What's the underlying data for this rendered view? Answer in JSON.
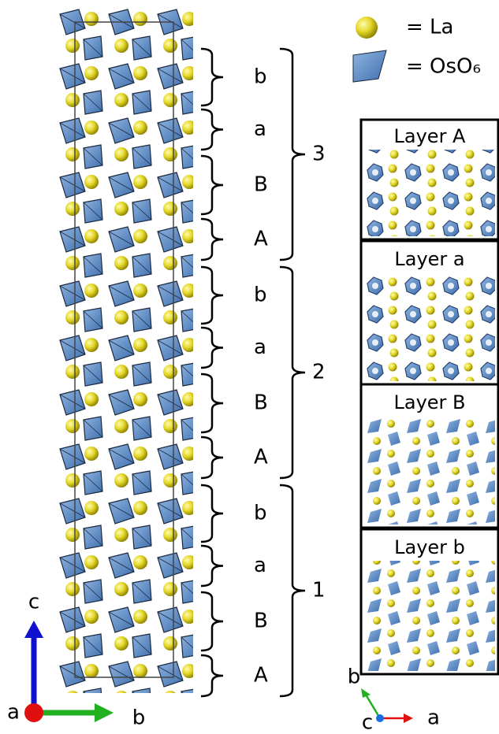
{
  "legend": [
    "= La",
    "= OsO₆"
  ],
  "stacks": [
    {
      "number": "3",
      "layers": [
        "b",
        "a",
        "B",
        "A"
      ]
    },
    {
      "number": "2",
      "layers": [
        "b",
        "a",
        "B",
        "A"
      ]
    },
    {
      "number": "1",
      "layers": [
        "b",
        "a",
        "B",
        "A"
      ]
    }
  ],
  "panels": [
    "Layer A",
    "Layer a",
    "Layer B",
    "Layer b"
  ],
  "left_axes": [
    "c",
    "a",
    "b"
  ],
  "right_axes": [
    "b",
    "c",
    "a"
  ]
}
